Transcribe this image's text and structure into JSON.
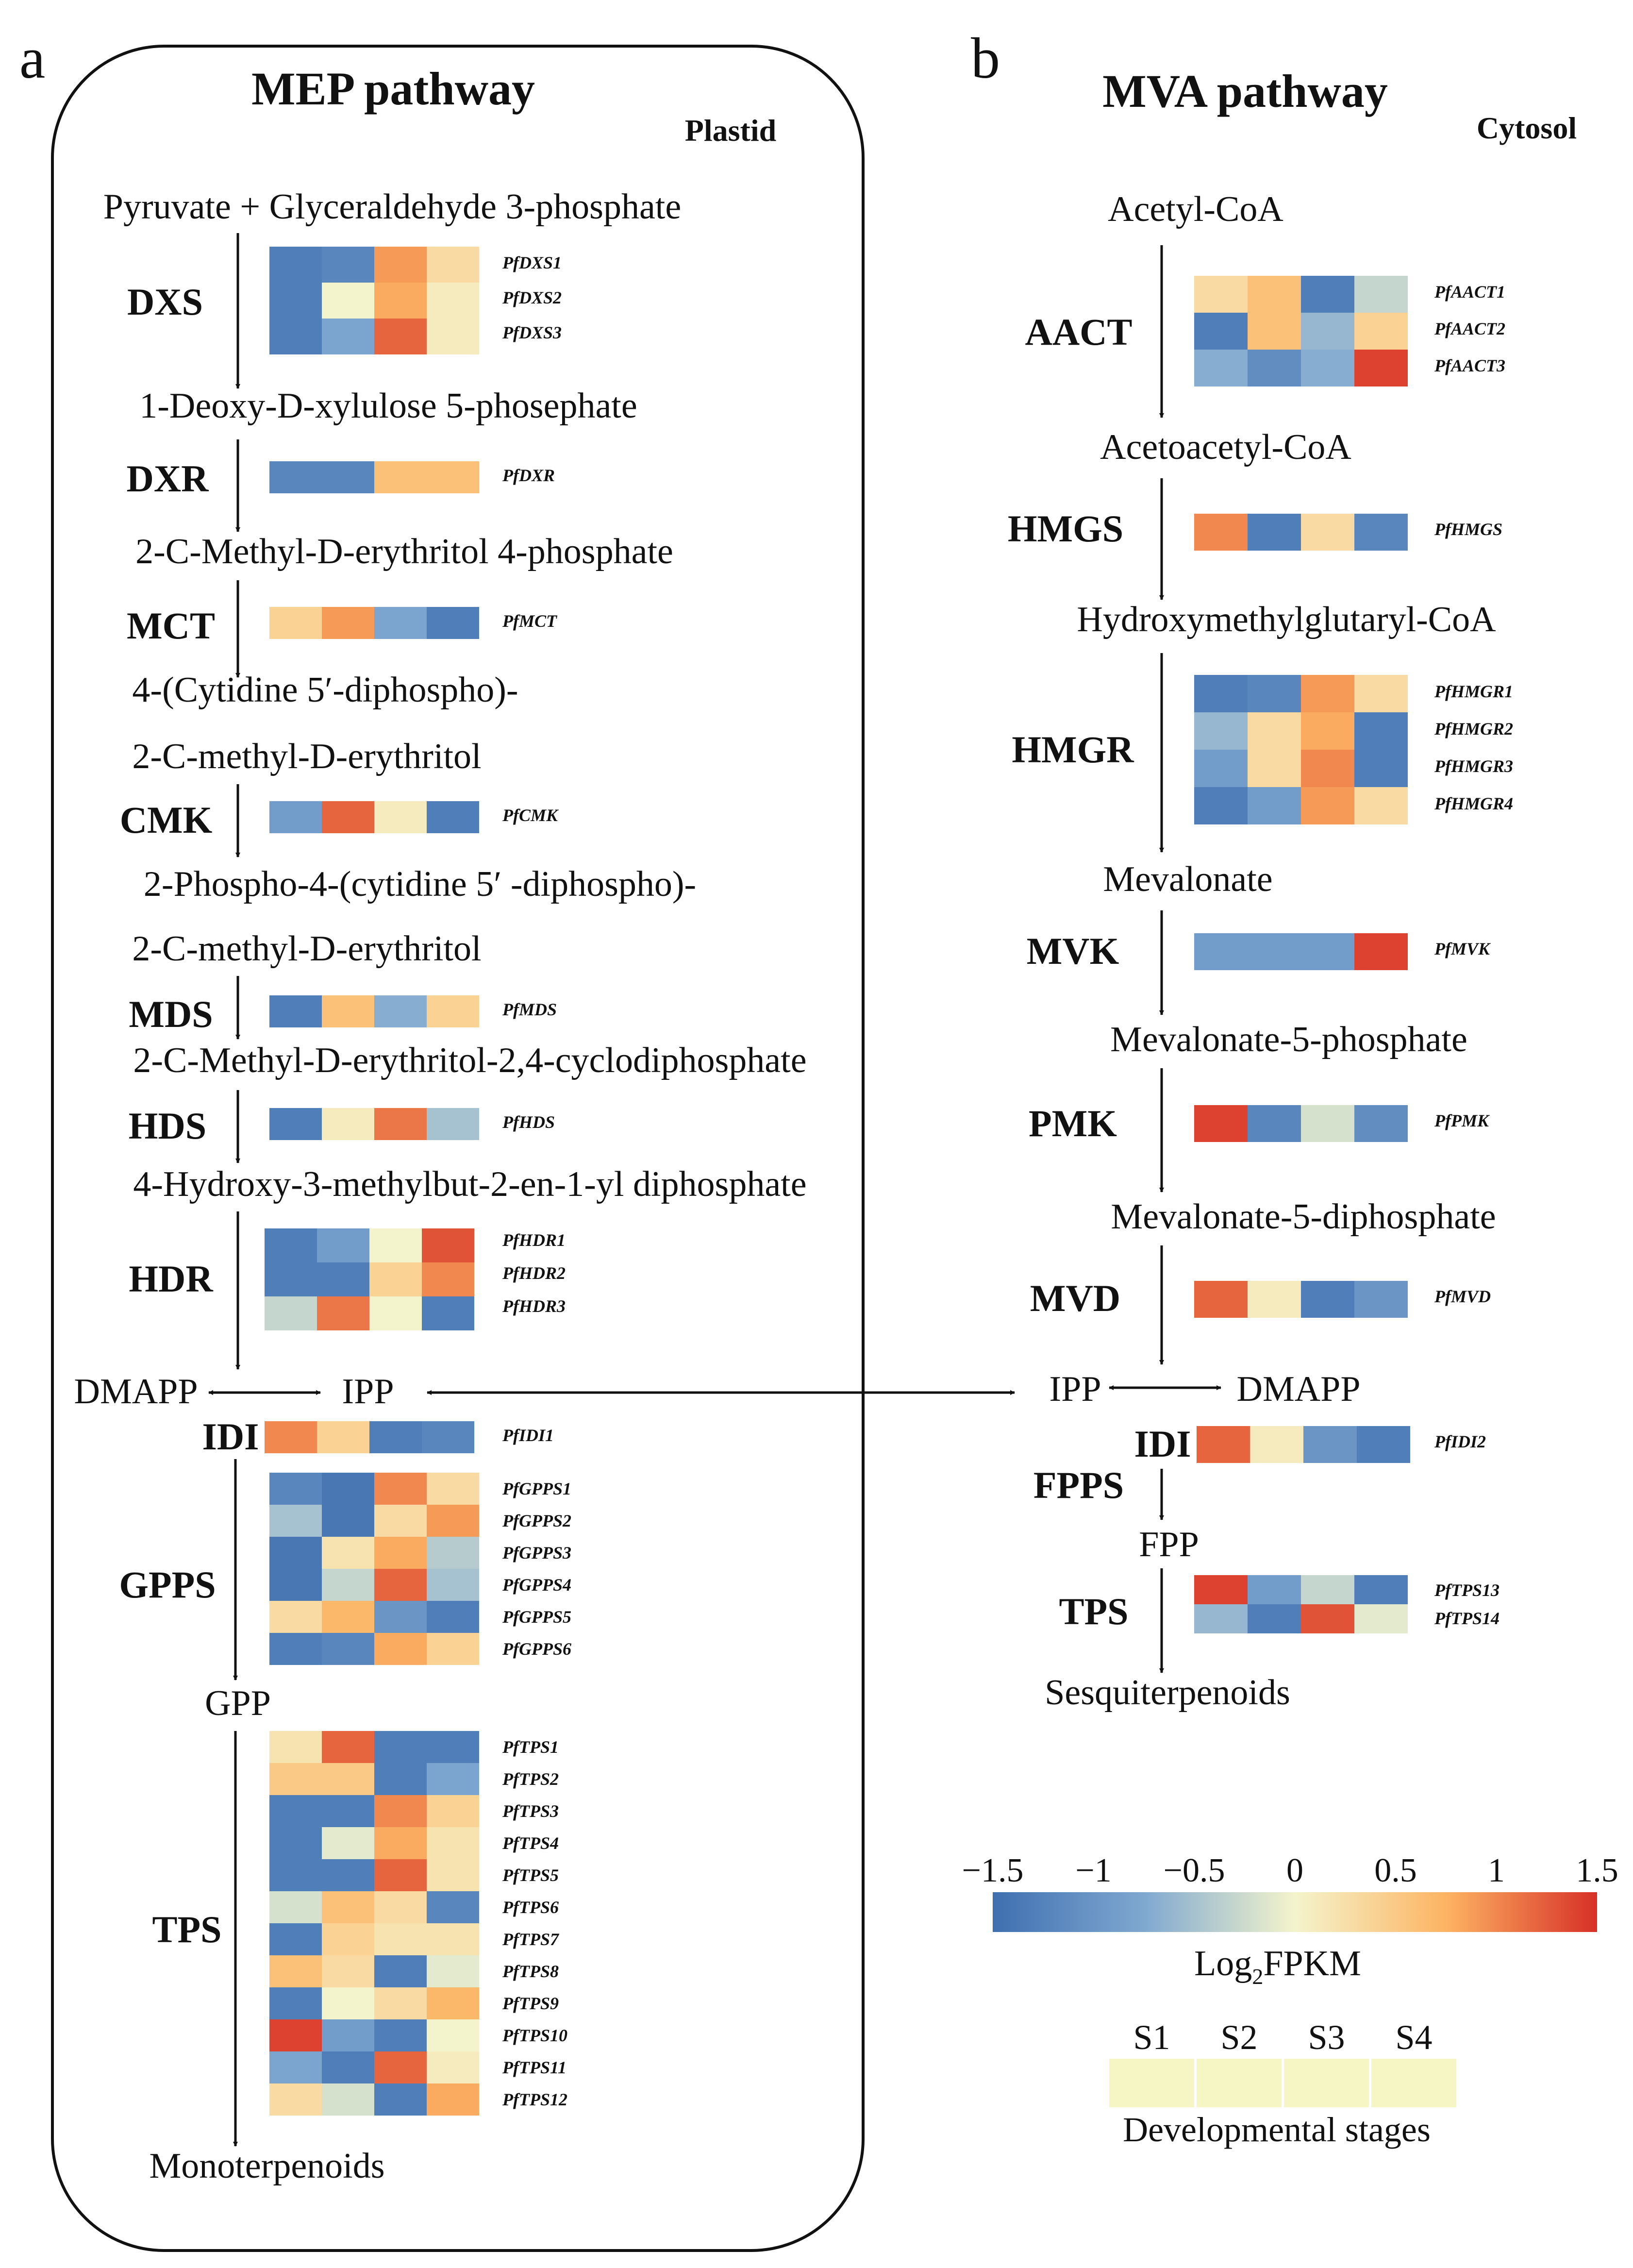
{
  "panels": {
    "a": {
      "label": "a",
      "title": "MEP pathway",
      "compartment": "Plastid",
      "metabolites": [
        "Pyruvate + Glyceraldehyde 3-phosphate",
        "1-Deoxy-D-xylulose 5-phosephate",
        "2-C-Methyl-D-erythritol 4-phosphate",
        "4-(Cytidine 5′-diphospho)-",
        "2-C-methyl-D-erythritol",
        "2-Phospho-4-(cytidine 5′ -diphospho)-",
        "2-C-methyl-D-erythritol",
        "2-C-Methyl-D-erythritol-2,4-cyclodiphosphate",
        "4-Hydroxy-3-methylbut-2-en-1-yl diphosphate",
        "DMAPP",
        "IPP",
        "GPP",
        "Monoterpenoids"
      ],
      "enzymes": [
        {
          "name": "DXS",
          "genes": [
            "PfDXS1",
            "PfDXS2",
            "PfDXS3"
          ],
          "levels": [
            [
              -1.3,
              -1.2,
              0.9,
              0.3
            ],
            [
              -1.3,
              0.0,
              0.8,
              0.1
            ],
            [
              -1.3,
              -0.8,
              1.2,
              0.1
            ]
          ]
        },
        {
          "name": "DXR",
          "genes": [
            "PfDXR"
          ],
          "levels": [
            [
              -1.2,
              -1.2,
              0.6,
              0.6
            ]
          ]
        },
        {
          "name": "MCT",
          "genes": [
            "PfMCT"
          ],
          "levels": [
            [
              0.4,
              0.9,
              -0.8,
              -1.3
            ]
          ]
        },
        {
          "name": "CMK",
          "genes": [
            "PfCMK"
          ],
          "levels": [
            [
              -0.9,
              1.2,
              0.1,
              -1.3
            ]
          ]
        },
        {
          "name": "MDS",
          "genes": [
            "PfMDS"
          ],
          "levels": [
            [
              -1.3,
              0.6,
              -0.7,
              0.4
            ]
          ]
        },
        {
          "name": "HDS",
          "genes": [
            "PfHDS"
          ],
          "levels": [
            [
              -1.3,
              0.1,
              1.1,
              -0.5
            ]
          ]
        },
        {
          "name": "HDR",
          "genes": [
            "PfHDR1",
            "PfHDR2",
            "PfHDR3"
          ],
          "levels": [
            [
              -1.3,
              -0.9,
              0.0,
              1.3
            ],
            [
              -1.3,
              -1.3,
              0.4,
              1.0
            ],
            [
              -0.3,
              1.1,
              0.0,
              -1.3
            ]
          ]
        },
        {
          "name": "IDI",
          "genes": [
            "PfIDI1"
          ],
          "levels": [
            [
              1.0,
              0.4,
              -1.3,
              -1.2
            ]
          ]
        },
        {
          "name": "GPPS",
          "genes": [
            "PfGPPS1",
            "PfGPPS2",
            "PfGPPS3",
            "PfGPPS4",
            "PfGPPS5",
            "PfGPPS6"
          ],
          "levels": [
            [
              -1.2,
              -1.4,
              1.0,
              0.3
            ],
            [
              -0.5,
              -1.4,
              0.3,
              0.9
            ],
            [
              -1.4,
              0.2,
              0.8,
              -0.4
            ],
            [
              -1.4,
              -0.3,
              1.2,
              -0.5
            ],
            [
              0.3,
              0.7,
              -1.0,
              -1.3
            ],
            [
              -1.3,
              -1.2,
              0.8,
              0.4
            ]
          ]
        },
        {
          "name": "TPS",
          "genes": [
            "PfTPS1",
            "PfTPS2",
            "PfTPS3",
            "PfTPS4",
            "PfTPS5",
            "PfTPS6",
            "PfTPS7",
            "PfTPS8",
            "PfTPS9",
            "PfTPS10",
            "PfTPS11",
            "PfTPS12"
          ],
          "levels": [
            [
              0.2,
              1.2,
              -1.3,
              -1.3
            ],
            [
              0.5,
              0.5,
              -1.3,
              -0.8
            ],
            [
              -1.3,
              -1.3,
              1.0,
              0.4
            ],
            [
              -1.3,
              -0.1,
              0.8,
              0.2
            ],
            [
              -1.3,
              -1.3,
              1.2,
              0.2
            ],
            [
              -0.2,
              0.6,
              0.3,
              -1.2
            ],
            [
              -1.3,
              0.4,
              0.2,
              0.2
            ],
            [
              0.6,
              0.3,
              -1.3,
              -0.1
            ],
            [
              -1.3,
              0.0,
              0.3,
              0.7
            ],
            [
              1.4,
              -0.9,
              -1.3,
              0.0
            ],
            [
              -0.8,
              -1.3,
              1.2,
              0.1
            ],
            [
              0.3,
              -0.2,
              -1.3,
              0.8
            ]
          ]
        }
      ]
    },
    "b": {
      "label": "b",
      "title": "MVA pathway",
      "compartment": "Cytosol",
      "metabolites": [
        "Acetyl-CoA",
        "Acetoacetyl-CoA",
        "Hydroxymethylglutaryl-CoA",
        "Mevalonate",
        "Mevalonate-5-phosphate",
        "Mevalonate-5-diphosphate",
        "IPP",
        "DMAPP",
        "FPP",
        "Sesquiterpenoids"
      ],
      "enzymes": [
        {
          "name": "AACT",
          "genes": [
            "PfAACT1",
            "PfAACT2",
            "PfAACT3"
          ],
          "levels": [
            [
              0.3,
              0.6,
              -1.3,
              -0.3
            ],
            [
              -1.3,
              0.6,
              -0.6,
              0.4
            ],
            [
              -0.7,
              -1.1,
              -0.7,
              1.4
            ]
          ]
        },
        {
          "name": "HMGS",
          "genes": [
            "PfHMGS"
          ],
          "levels": [
            [
              1.0,
              -1.3,
              0.3,
              -1.2
            ]
          ]
        },
        {
          "name": "HMGR",
          "genes": [
            "PfHMGR1",
            "PfHMGR2",
            "PfHMGR3",
            "PfHMGR4"
          ],
          "levels": [
            [
              -1.3,
              -1.2,
              0.9,
              0.3
            ],
            [
              -0.6,
              0.3,
              0.8,
              -1.3
            ],
            [
              -0.9,
              0.3,
              1.0,
              -1.3
            ],
            [
              -1.3,
              -0.9,
              0.9,
              0.3
            ]
          ]
        },
        {
          "name": "MVK",
          "genes": [
            "PfMVK"
          ],
          "levels": [
            [
              -0.9,
              -0.9,
              -0.9,
              1.4
            ]
          ]
        },
        {
          "name": "PMK",
          "genes": [
            "PfPMK"
          ],
          "levels": [
            [
              1.4,
              -1.2,
              -0.2,
              -1.1
            ]
          ]
        },
        {
          "name": "MVD",
          "genes": [
            "PfMVD"
          ],
          "levels": [
            [
              1.2,
              0.1,
              -1.3,
              -1.0
            ]
          ]
        },
        {
          "name": "IDI",
          "genes": [
            "PfIDI2"
          ],
          "levels": [
            [
              1.2,
              0.1,
              -1.0,
              -1.3
            ]
          ]
        },
        {
          "name": "FPPS",
          "genes": [],
          "levels": []
        },
        {
          "name": "TPS",
          "genes": [
            "PfTPS13",
            "PfTPS14"
          ],
          "levels": [
            [
              1.4,
              -0.9,
              -0.3,
              -1.3
            ],
            [
              -0.6,
              -1.3,
              1.3,
              -0.1
            ]
          ]
        }
      ]
    }
  },
  "scale": {
    "title_main": "Log",
    "title_sub": "2",
    "title_rest": "FPKM",
    "min": -1.5,
    "max": 1.5,
    "ticks": [
      "−1.5",
      "−1",
      "−0.5",
      "0",
      "0.5",
      "1",
      "1.5"
    ],
    "tick_values": [
      -1.5,
      -1,
      -0.5,
      0,
      0.5,
      1,
      1.5
    ],
    "colors": {
      "low": "#4575b4",
      "mid_low": "#91bfdb",
      "mid": "#f7f7c7",
      "mid_high": "#fdae61",
      "high": "#d73027"
    }
  },
  "stages": {
    "labels": [
      "S1",
      "S2",
      "S3",
      "S4"
    ],
    "caption": "Developmental stages",
    "swatch_color": "#f6f5c4"
  }
}
